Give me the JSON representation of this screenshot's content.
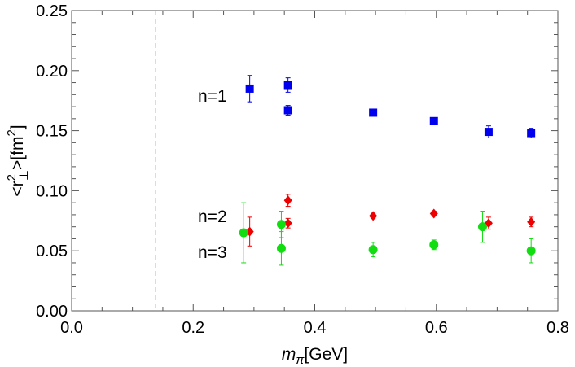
{
  "chart_data": {
    "type": "scatter",
    "title": "",
    "xlabel": {
      "symbol": "m",
      "subscript": "π",
      "unit": "[GeV]"
    },
    "ylabel": {
      "pre": "<r",
      "sup": "2",
      "sub": "⊥",
      "post": ">[fm",
      "unit_sup": "2",
      "close": "]"
    },
    "xlim": [
      0.0,
      0.8
    ],
    "ylim": [
      0.0,
      0.25
    ],
    "xticks": [
      "0.0",
      "0.2",
      "0.4",
      "0.6",
      "0.8"
    ],
    "yticks": [
      "0.00",
      "0.05",
      "0.10",
      "0.15",
      "0.20",
      "0.25"
    ],
    "vline": {
      "x": 0.138,
      "style": "dashed"
    },
    "series": [
      {
        "name": "n=1",
        "label": "n=1",
        "marker": "square",
        "color": "#0000ee",
        "points": [
          {
            "x": 0.293,
            "y": 0.185,
            "err": 0.011
          },
          {
            "x": 0.356,
            "y": 0.188,
            "err": 0.006
          },
          {
            "x": 0.356,
            "y": 0.167,
            "err": 0.004
          },
          {
            "x": 0.496,
            "y": 0.165,
            "err": 0.002
          },
          {
            "x": 0.596,
            "y": 0.158,
            "err": 0.002
          },
          {
            "x": 0.686,
            "y": 0.149,
            "err": 0.005
          },
          {
            "x": 0.756,
            "y": 0.148,
            "err": 0.004
          }
        ]
      },
      {
        "name": "n=2",
        "label": "n=2",
        "marker": "diamond",
        "color": "#ee0000",
        "points": [
          {
            "x": 0.293,
            "y": 0.066,
            "err": 0.012
          },
          {
            "x": 0.356,
            "y": 0.092,
            "err": 0.005
          },
          {
            "x": 0.356,
            "y": 0.073,
            "err": 0.004
          },
          {
            "x": 0.496,
            "y": 0.079,
            "err": 0.002
          },
          {
            "x": 0.596,
            "y": 0.081,
            "err": 0.002
          },
          {
            "x": 0.686,
            "y": 0.073,
            "err": 0.005
          },
          {
            "x": 0.756,
            "y": 0.074,
            "err": 0.004
          }
        ]
      },
      {
        "name": "n=3",
        "label": "n=3",
        "marker": "circle",
        "color": "#11dd11",
        "points": [
          {
            "x": 0.283,
            "y": 0.065,
            "err": 0.025
          },
          {
            "x": 0.345,
            "y": 0.072,
            "err": 0.011
          },
          {
            "x": 0.345,
            "y": 0.052,
            "err": 0.014
          },
          {
            "x": 0.496,
            "y": 0.051,
            "err": 0.006
          },
          {
            "x": 0.596,
            "y": 0.055,
            "err": 0.004
          },
          {
            "x": 0.676,
            "y": 0.07,
            "err": 0.013
          },
          {
            "x": 0.756,
            "y": 0.05,
            "err": 0.01
          }
        ]
      }
    ]
  }
}
